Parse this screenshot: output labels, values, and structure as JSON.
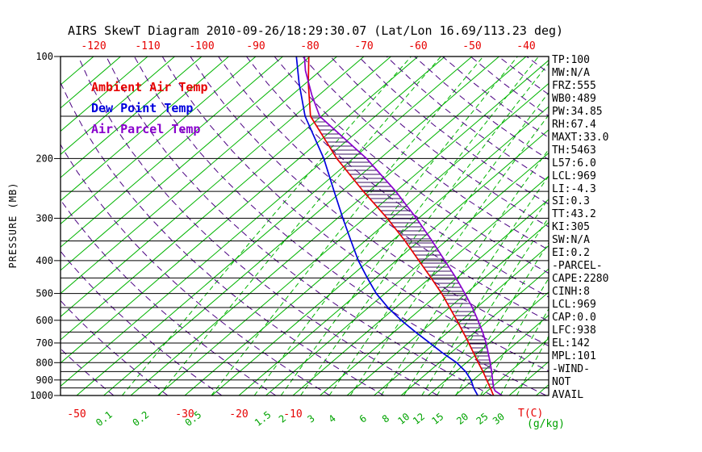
{
  "title": "AIRS SkewT Diagram 2010-09-26/18:29:30.07 (Lat/Lon 16.69/113.23 deg)",
  "legend": {
    "ambient": {
      "label": "Ambient Air Temp",
      "color": "#e60000"
    },
    "dewpoint": {
      "label": "Dew Point Temp",
      "color": "#0000dd"
    },
    "parcel": {
      "label": "Air Parcel Temp",
      "color": "#8800cc"
    }
  },
  "axes": {
    "pressure_label": "PRESSURE (MB)",
    "pressure_tick_labels": [
      100,
      200,
      300,
      400,
      500,
      600,
      700,
      800,
      900,
      1000
    ],
    "pressure_lines": [
      100,
      150,
      200,
      250,
      300,
      350,
      400,
      450,
      500,
      550,
      600,
      650,
      700,
      750,
      800,
      850,
      900,
      950,
      1000
    ],
    "top_temp_labels": [
      -120,
      -110,
      -100,
      -90,
      -80,
      -70,
      -60,
      -50,
      -40
    ],
    "bottom_temp_labels": [
      -50,
      -30,
      -20,
      -10
    ],
    "temp_unit": "T(C)",
    "mixratio_unit": "(g/kg)"
  },
  "stats": [
    "TP:100",
    "MW:N/A",
    "FRZ:555",
    "WB0:489",
    "PW:34.85",
    "RH:67.4",
    "MAXT:33.0",
    "TH:5463",
    "L57:6.0",
    "LCL:969",
    "LI:-4.3",
    "SI:0.3",
    "TT:43.2",
    "KI:305",
    "SW:N/A",
    "EI:0.2",
    "-PARCEL-",
    "CAPE:2280",
    "CINH:8",
    "LCL:969",
    "CAP:0.0",
    "LFC:938",
    "EL:142",
    "MPL:101",
    "-WIND-",
    "NOT",
    "AVAIL"
  ],
  "colors": {
    "isotherm": "#00b400",
    "mixing_ratio": "#00b400",
    "dry_adiabat": "#4b0082",
    "pressure_line": "#000000",
    "border": "#000000",
    "ambient": "#e60000",
    "dewpoint": "#0000dd",
    "parcel": "#8800cc",
    "hatch": "#3a1060",
    "axis_label_red": "#e60000",
    "axis_label_green": "#00a300",
    "axis_label_black": "#000000"
  },
  "chart_data": {
    "type": "line",
    "subtype": "skewt-logp",
    "pressure_range_mb": [
      100,
      1000
    ],
    "isotherms_c": {
      "min": -120,
      "max": 45,
      "step": 5
    },
    "dry_adiabats_k": {
      "min": 220,
      "max": 450,
      "step": 10
    },
    "mixing_ratio_lines_gkg": [
      0.1,
      0.2,
      0.5,
      1,
      1.5,
      2,
      3,
      4,
      6,
      8,
      10,
      12,
      15,
      20,
      25,
      30
    ],
    "mixing_ratio_labels_gkg": [
      0.1,
      0.2,
      0.5,
      1.5,
      2,
      3,
      4,
      6,
      8,
      10,
      12,
      15,
      20,
      25,
      30
    ],
    "series": {
      "ambient": {
        "name": "Ambient Air Temp",
        "pressure_mb": [
          1005,
          1000,
          950,
          900,
          850,
          800,
          750,
          700,
          650,
          600,
          550,
          500,
          450,
          400,
          350,
          300,
          250,
          200,
          150,
          120,
          100
        ],
        "temp_c": [
          27.3,
          27.1,
          24.9,
          22.5,
          20.0,
          17.2,
          14.3,
          11.2,
          7.8,
          4.1,
          0.0,
          -4.5,
          -9.8,
          -15.8,
          -22.6,
          -30.8,
          -41.0,
          -53.0,
          -67.0,
          -74.5,
          -80.2
        ]
      },
      "dewpoint": {
        "name": "Dew Point Temp",
        "pressure_mb": [
          1005,
          1000,
          950,
          900,
          850,
          800,
          750,
          700,
          650,
          600,
          550,
          500,
          450,
          400,
          350,
          300,
          250,
          200,
          150,
          120,
          100
        ],
        "temp_c": [
          24.4,
          24.2,
          21.8,
          19.6,
          16.8,
          13.2,
          8.6,
          4.0,
          -1.0,
          -6.2,
          -11.4,
          -16.6,
          -21.6,
          -27.0,
          -32.6,
          -39.0,
          -46.4,
          -55.4,
          -68.0,
          -76.2,
          -82.5
        ]
      },
      "parcel": {
        "name": "Air Parcel Temp",
        "pressure_mb": [
          1005,
          1000,
          969,
          950,
          900,
          850,
          800,
          750,
          700,
          650,
          600,
          550,
          500,
          450,
          400,
          350,
          300,
          250,
          200,
          150,
          130,
          110,
          100
        ],
        "temp_c": [
          29.0,
          28.7,
          26.4,
          25.5,
          23.6,
          21.6,
          19.4,
          17.0,
          14.4,
          11.4,
          8.0,
          4.2,
          -0.2,
          -5.2,
          -11.0,
          -17.6,
          -25.4,
          -35.0,
          -47.5,
          -65.3,
          -71.3,
          -77.8,
          -81.0
        ]
      }
    },
    "cape_hatch": {
      "between": [
        "ambient",
        "parcel"
      ],
      "pressure_bottom_mb": 950,
      "pressure_top_mb": 150
    }
  }
}
